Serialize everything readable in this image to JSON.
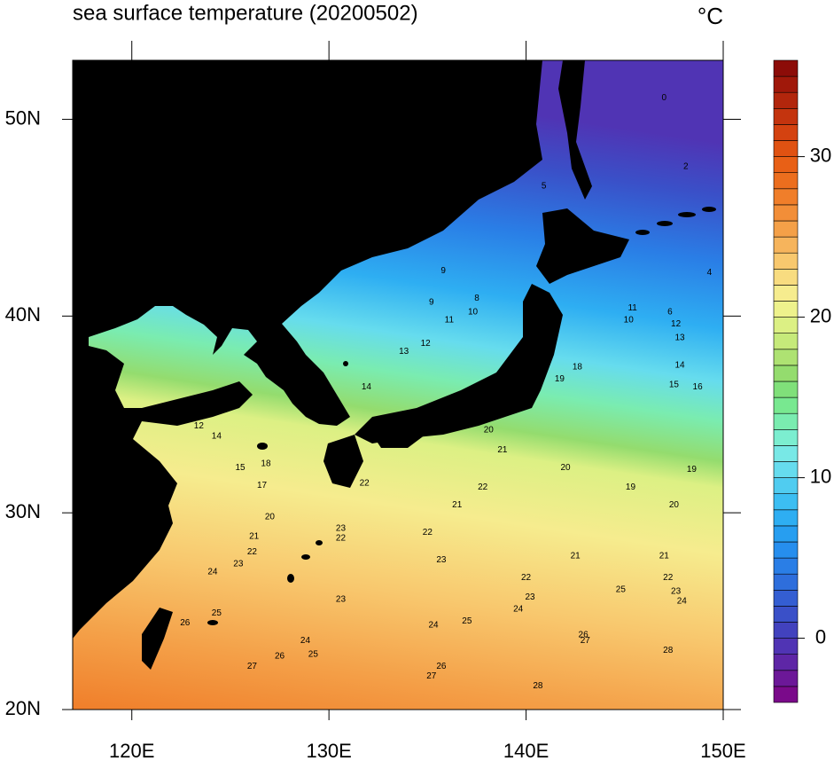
{
  "chart_data": {
    "type": "map",
    "title": "sea surface temperature (20200502)",
    "unit": "°C",
    "xlim": [
      117,
      150
    ],
    "ylim": [
      20,
      53
    ],
    "xticks": [
      {
        "value": 120,
        "label": "120E"
      },
      {
        "value": 130,
        "label": "130E"
      },
      {
        "value": 140,
        "label": "140E"
      },
      {
        "value": 150,
        "label": "150E"
      }
    ],
    "yticks": [
      {
        "value": 20,
        "label": "20N"
      },
      {
        "value": 30,
        "label": "30N"
      },
      {
        "value": 40,
        "label": "40N"
      },
      {
        "value": 50,
        "label": "50N"
      }
    ],
    "colorbar": {
      "lim": [
        -4,
        36
      ],
      "ticks": [
        0,
        10,
        20,
        30
      ],
      "colors": [
        "#7a0a8a",
        "#6c1898",
        "#5e26a6",
        "#5034b4",
        "#4242be",
        "#3a50c8",
        "#345ed2",
        "#2e6edc",
        "#2a7ee6",
        "#268eee",
        "#279ef0",
        "#2eaef2",
        "#3cbef2",
        "#50ccf0",
        "#66dcee",
        "#78e8e6",
        "#7ceed0",
        "#7aecb0",
        "#78e890",
        "#80e07a",
        "#94dc6e",
        "#aee272",
        "#c6ea7a",
        "#dcf084",
        "#eef28c",
        "#f6ec8e",
        "#f8dc80",
        "#f8c86e",
        "#f6b45c",
        "#f4a048",
        "#f28e38",
        "#f07e2a",
        "#ec6e1e",
        "#e86016",
        "#e05212",
        "#d44210",
        "#c4340e",
        "#b2260c",
        "#a0180a",
        "#8c0c08"
      ]
    },
    "contour_labels": [
      {
        "value": 0,
        "lon": 147.0,
        "lat": 51.1
      },
      {
        "value": 2,
        "lon": 148.1,
        "lat": 47.6
      },
      {
        "value": 5,
        "lon": 140.9,
        "lat": 46.6
      },
      {
        "value": 9,
        "lon": 135.8,
        "lat": 42.3
      },
      {
        "value": 8,
        "lon": 137.5,
        "lat": 40.9
      },
      {
        "value": 9,
        "lon": 135.2,
        "lat": 40.7
      },
      {
        "value": 10,
        "lon": 137.3,
        "lat": 40.2
      },
      {
        "value": 11,
        "lon": 136.1,
        "lat": 39.8
      },
      {
        "value": 12,
        "lon": 134.9,
        "lat": 38.6
      },
      {
        "value": 13,
        "lon": 133.8,
        "lat": 38.2
      },
      {
        "value": 14,
        "lon": 131.9,
        "lat": 36.4
      },
      {
        "value": 12,
        "lon": 123.4,
        "lat": 34.4
      },
      {
        "value": 14,
        "lon": 124.3,
        "lat": 33.9
      },
      {
        "value": 15,
        "lon": 125.5,
        "lat": 32.3
      },
      {
        "value": 17,
        "lon": 126.6,
        "lat": 31.4
      },
      {
        "value": 18,
        "lon": 126.8,
        "lat": 32.5
      },
      {
        "value": 20,
        "lon": 127.0,
        "lat": 29.8
      },
      {
        "value": 21,
        "lon": 126.2,
        "lat": 28.8
      },
      {
        "value": 22,
        "lon": 126.1,
        "lat": 28.0
      },
      {
        "value": 23,
        "lon": 125.4,
        "lat": 27.4
      },
      {
        "value": 24,
        "lon": 124.1,
        "lat": 27.0
      },
      {
        "value": 25,
        "lon": 124.3,
        "lat": 24.9
      },
      {
        "value": 26,
        "lon": 122.7,
        "lat": 24.4
      },
      {
        "value": 27,
        "lon": 126.1,
        "lat": 22.2
      },
      {
        "value": 26,
        "lon": 127.5,
        "lat": 22.7
      },
      {
        "value": 25,
        "lon": 129.2,
        "lat": 22.8
      },
      {
        "value": 24,
        "lon": 128.8,
        "lat": 23.5
      },
      {
        "value": 23,
        "lon": 130.6,
        "lat": 25.6
      },
      {
        "value": 22,
        "lon": 130.6,
        "lat": 28.7
      },
      {
        "value": 23,
        "lon": 130.6,
        "lat": 29.2
      },
      {
        "value": 22,
        "lon": 131.8,
        "lat": 31.5
      },
      {
        "value": 21,
        "lon": 136.5,
        "lat": 30.4
      },
      {
        "value": 22,
        "lon": 135.0,
        "lat": 29.0
      },
      {
        "value": 23,
        "lon": 135.7,
        "lat": 27.6
      },
      {
        "value": 24,
        "lon": 135.3,
        "lat": 24.3
      },
      {
        "value": 25,
        "lon": 137.0,
        "lat": 24.5
      },
      {
        "value": 26,
        "lon": 135.7,
        "lat": 22.2
      },
      {
        "value": 27,
        "lon": 135.2,
        "lat": 21.7
      },
      {
        "value": 28,
        "lon": 140.6,
        "lat": 21.2
      },
      {
        "value": 20,
        "lon": 138.1,
        "lat": 34.2
      },
      {
        "value": 21,
        "lon": 138.8,
        "lat": 33.2
      },
      {
        "value": 22,
        "lon": 137.8,
        "lat": 31.3
      },
      {
        "value": 20,
        "lon": 142.0,
        "lat": 32.3
      },
      {
        "value": 19,
        "lon": 145.3,
        "lat": 31.3
      },
      {
        "value": 19,
        "lon": 148.4,
        "lat": 32.2
      },
      {
        "value": 20,
        "lon": 147.5,
        "lat": 30.4
      },
      {
        "value": 21,
        "lon": 142.5,
        "lat": 27.8
      },
      {
        "value": 22,
        "lon": 140.0,
        "lat": 26.7
      },
      {
        "value": 23,
        "lon": 140.2,
        "lat": 25.7
      },
      {
        "value": 24,
        "lon": 139.6,
        "lat": 25.1
      },
      {
        "value": 25,
        "lon": 144.8,
        "lat": 26.1
      },
      {
        "value": 22,
        "lon": 147.2,
        "lat": 26.7
      },
      {
        "value": 23,
        "lon": 147.6,
        "lat": 26.0
      },
      {
        "value": 24,
        "lon": 147.9,
        "lat": 25.5
      },
      {
        "value": 21,
        "lon": 147.0,
        "lat": 27.8
      },
      {
        "value": 26,
        "lon": 142.9,
        "lat": 23.8
      },
      {
        "value": 27,
        "lon": 143.0,
        "lat": 23.5
      },
      {
        "value": 28,
        "lon": 147.2,
        "lat": 23.0
      },
      {
        "value": 18,
        "lon": 142.6,
        "lat": 37.4
      },
      {
        "value": 19,
        "lon": 141.7,
        "lat": 36.8
      },
      {
        "value": 14,
        "lon": 147.8,
        "lat": 37.5
      },
      {
        "value": 15,
        "lon": 147.5,
        "lat": 36.5
      },
      {
        "value": 16,
        "lon": 148.7,
        "lat": 36.4
      },
      {
        "value": 12,
        "lon": 147.6,
        "lat": 39.6
      },
      {
        "value": 13,
        "lon": 147.8,
        "lat": 38.9
      },
      {
        "value": 10,
        "lon": 145.2,
        "lat": 39.8
      },
      {
        "value": 11,
        "lon": 145.4,
        "lat": 40.4
      },
      {
        "value": 6,
        "lon": 147.3,
        "lat": 40.2
      },
      {
        "value": 4,
        "lon": 149.3,
        "lat": 42.2
      }
    ]
  }
}
